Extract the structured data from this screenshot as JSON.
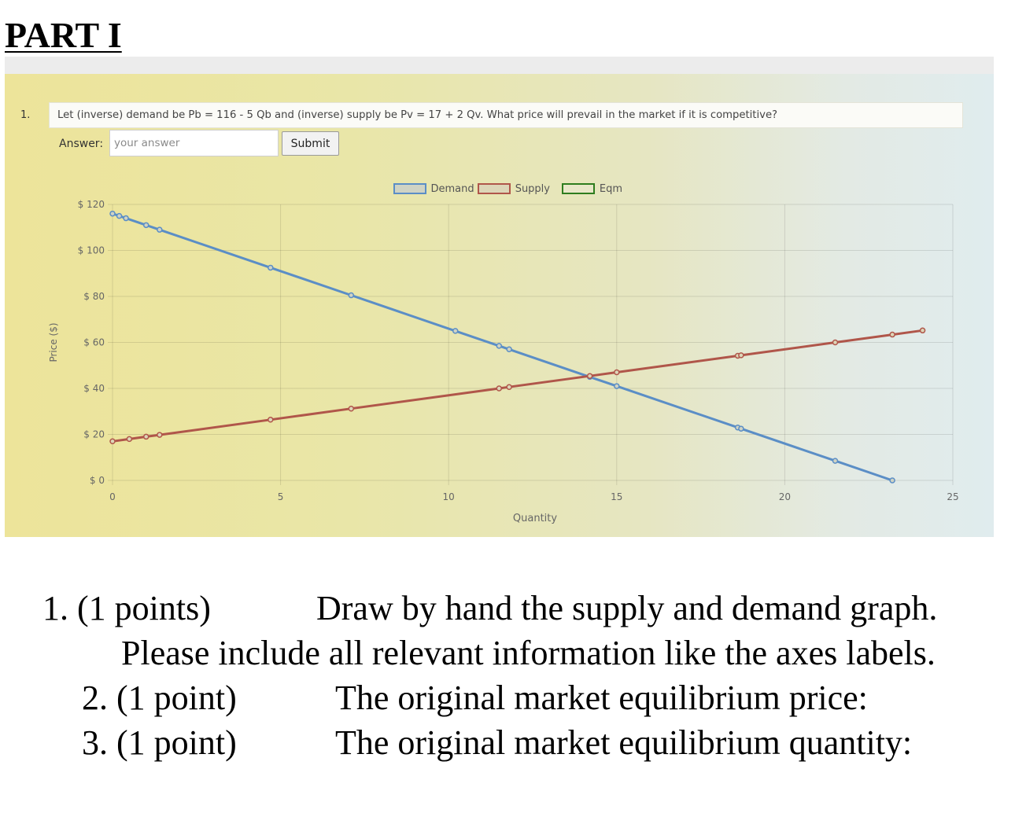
{
  "part_title": "PART I",
  "question": {
    "number": "1.",
    "text": "Let (inverse) demand be Pb = 116 - 5 Qb and (inverse) supply be Pv = 17 + 2 Qv. What price will prevail in the market if it is competitive?"
  },
  "answer": {
    "label": "Answer:",
    "placeholder": "your answer",
    "submit_label": "Submit"
  },
  "chart_data": {
    "type": "line",
    "xlabel": "Quantity",
    "ylabel": "Price ($)",
    "xlim": [
      0,
      25
    ],
    "ylim": [
      0,
      120
    ],
    "x_ticks": [
      0,
      5,
      10,
      15,
      20,
      25
    ],
    "y_ticks": [
      0,
      20,
      40,
      60,
      80,
      100,
      120
    ],
    "y_tick_labels": [
      "$ 0",
      "$ 20",
      "$ 40",
      "$ 60",
      "$ 80",
      "$ 100",
      "$ 120"
    ],
    "grid": true,
    "legend_position": "top-center",
    "series": [
      {
        "name": "Demand",
        "border_color": "#5b8ec6",
        "fill_color": "#cfd3c4",
        "x": [
          0,
          0.2,
          0.4,
          1.0,
          1.4,
          4.7,
          7.1,
          10.2,
          11.5,
          11.8,
          14.2,
          15.0,
          18.6,
          18.7,
          21.5,
          23.2
        ],
        "y": [
          116,
          115,
          114,
          111,
          109,
          92.5,
          80.5,
          65,
          58.5,
          57,
          45,
          41,
          23,
          22.5,
          8.5,
          0
        ]
      },
      {
        "name": "Supply",
        "border_color": "#b0564a",
        "fill_color": "#ddd6b8",
        "x": [
          0,
          0.5,
          1.0,
          1.4,
          4.7,
          7.1,
          11.5,
          11.8,
          14.2,
          15.0,
          18.6,
          18.7,
          21.5,
          23.2,
          24.1
        ],
        "y": [
          17,
          18,
          19,
          19.8,
          26.4,
          31.2,
          40,
          40.6,
          45.4,
          47,
          54.2,
          54.4,
          60,
          63.4,
          65.2
        ]
      },
      {
        "name": "Eqm",
        "border_color": "#2e7d1e",
        "fill_color": "#e8e7c8",
        "x": [],
        "y": []
      }
    ]
  },
  "questions": [
    {
      "points": "1. (1 points)",
      "text": "Draw by hand the supply and demand graph.  Please include all relevant information like the axes labels."
    },
    {
      "points": "2. (1 point)",
      "text": "The original market equilibrium price:"
    },
    {
      "points": "3. (1 point)",
      "text": "The original market equilibrium quantity:"
    }
  ]
}
